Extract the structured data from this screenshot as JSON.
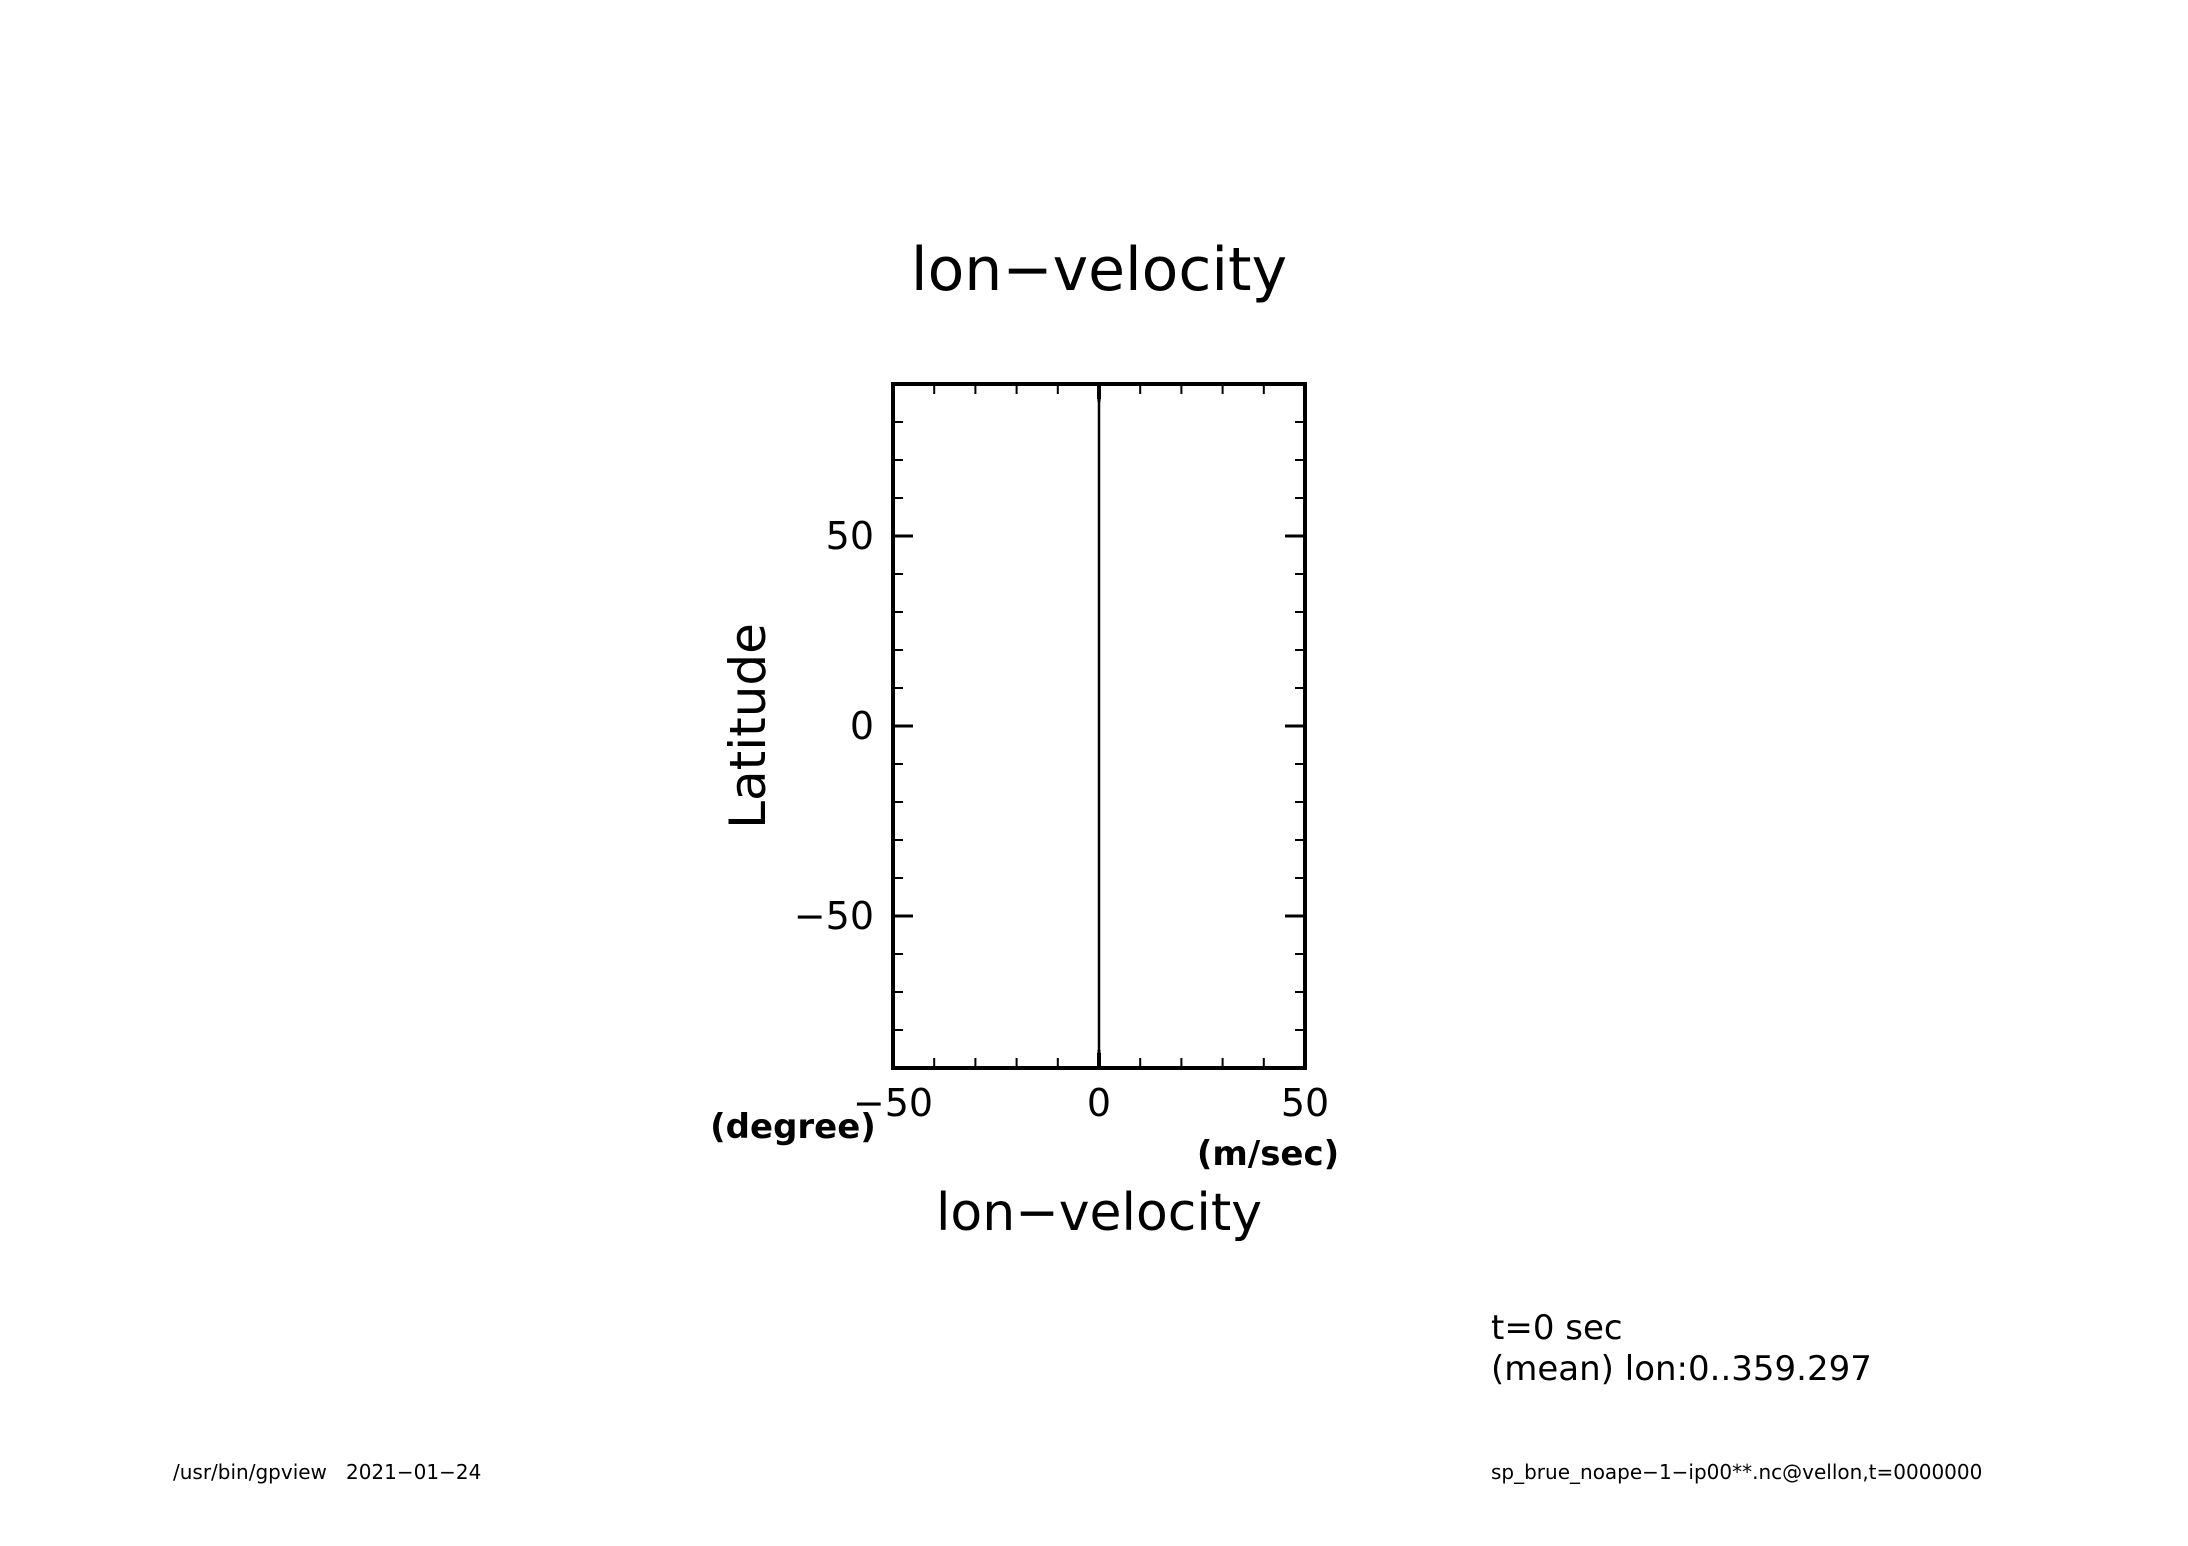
{
  "chart_data": {
    "type": "line",
    "title": "lon−velocity",
    "xlabel": "lon−velocity",
    "ylabel": "Latitude",
    "x_unit": "(m/sec)",
    "y_unit": "(degree)",
    "xlim": [
      -50,
      50
    ],
    "ylim": [
      -90,
      90
    ],
    "x_ticks": [
      -50,
      0,
      50
    ],
    "x_tick_labels": [
      "−50",
      "0",
      "50"
    ],
    "y_ticks": [
      -50,
      0,
      50
    ],
    "y_tick_labels": [
      "−50",
      "0",
      "50"
    ],
    "grid": false,
    "series": [
      {
        "x": [
          0,
          0
        ],
        "y": [
          -86,
          86
        ]
      }
    ]
  },
  "annotations": {
    "time": "t=0 sec",
    "mean": "(mean) lon:0..359.297"
  },
  "footer": {
    "left": "/usr/bin/gpview   2021−01−24",
    "right": "sp_brue_noape−1−ip00**.nc@vellon,t=0000000"
  }
}
